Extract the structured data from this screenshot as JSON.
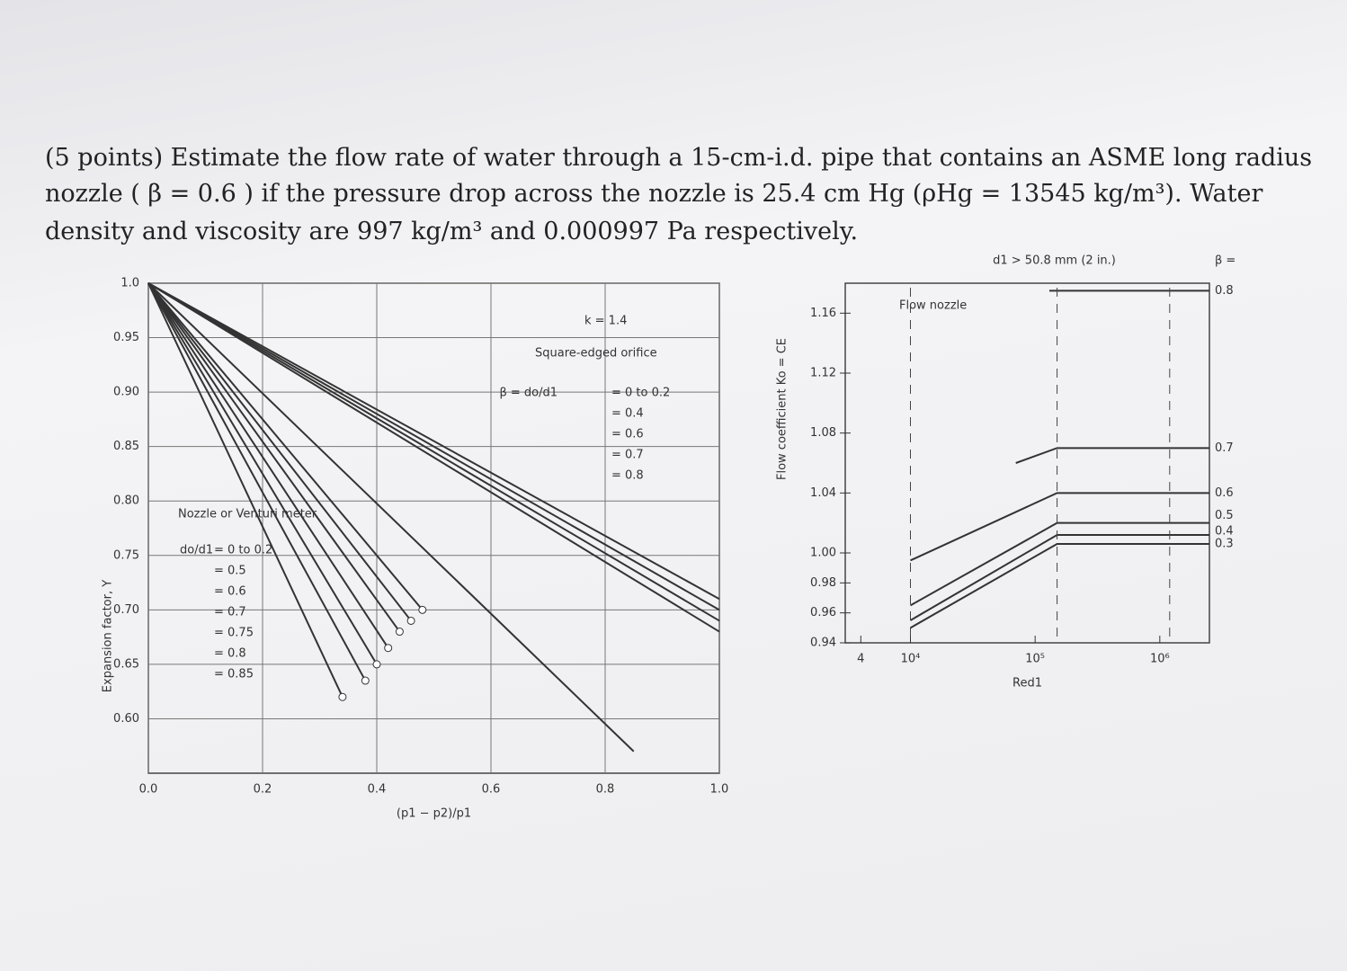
{
  "question": {
    "lines": [
      "(5 points) Estimate the flow rate of water through a 15-cm-i.d. pipe that contains an ASME long radius",
      "nozzle ( β = 0.6 ) if the pressure drop across the nozzle is 25.4 cm Hg (ρHg = 13545 kg/m³). Water",
      "density and viscosity are 997 kg/m³ and 0.000997 Pa respectively."
    ]
  },
  "chart_data": [
    {
      "type": "line",
      "x_label": "(p1 − p2)/p1",
      "y_label": "Expansion factor, Y",
      "color": "#333333",
      "grid": true,
      "k_label": "k = 1.4",
      "orifice_label": "Square-edged orifice",
      "orifice_ratio": "β = do/d1",
      "nozzle_label": "Nozzle or Venturi meter",
      "nozzle_ratio": "do/d1",
      "xlim": [
        0,
        1
      ],
      "ylim": [
        0.55,
        1
      ],
      "xticks": [
        {
          "value": 0,
          "label": "0.0"
        },
        0.2,
        0.4,
        0.6,
        0.8,
        {
          "value": 1,
          "label": "1.0"
        }
      ],
      "yticks": [
        {
          "value": 0.6,
          "label": "0.60"
        },
        0.65,
        {
          "value": 0.7,
          "label": "0.70"
        },
        0.75,
        {
          "value": 0.8,
          "label": "0.80"
        },
        0.85,
        {
          "value": 0.9,
          "label": "0.90"
        },
        0.95,
        {
          "value": 1,
          "label": "1.0"
        }
      ],
      "orifice_series": [
        {
          "name": "= 0 to 0.2",
          "x": [
            0,
            1
          ],
          "values": [
            1,
            0.71
          ]
        },
        {
          "name": "= 0.4",
          "x": [
            0,
            1
          ],
          "values": [
            1,
            0.7
          ]
        },
        {
          "name": "= 0.6",
          "x": [
            0,
            1
          ],
          "values": [
            1,
            0.69
          ]
        },
        {
          "name": "= 0.7",
          "x": [
            0,
            1
          ],
          "values": [
            1,
            0.68
          ]
        },
        {
          "name": "= 0.8",
          "x": [
            0,
            0.85
          ],
          "values": [
            1,
            0.57
          ]
        }
      ],
      "nozzle_series": [
        {
          "name": "= 0 to 0.2",
          "x": [
            0,
            0.48
          ],
          "values": [
            1,
            0.7
          ]
        },
        {
          "name": "= 0.5",
          "x": [
            0,
            0.46
          ],
          "values": [
            1,
            0.69
          ]
        },
        {
          "name": "= 0.6",
          "x": [
            0,
            0.44
          ],
          "values": [
            1,
            0.68
          ]
        },
        {
          "name": "= 0.7",
          "x": [
            0,
            0.42
          ],
          "values": [
            1,
            0.665
          ]
        },
        {
          "name": "= 0.75",
          "x": [
            0,
            0.4
          ],
          "values": [
            1,
            0.65
          ]
        },
        {
          "name": "= 0.8",
          "x": [
            0,
            0.38
          ],
          "values": [
            1,
            0.635
          ]
        },
        {
          "name": "= 0.85",
          "x": [
            0,
            0.34
          ],
          "values": [
            1,
            0.62
          ]
        }
      ]
    },
    {
      "type": "line",
      "x_label": "Red1",
      "y_label": "Flow coefficient Ko = CE",
      "color": "#333333",
      "grid": false,
      "log_x": true,
      "note": "d1 > 50.8 mm (2 in.)",
      "device_label": "Flow nozzle",
      "beta_label": "β =",
      "xlim": [
        3000,
        2500000
      ],
      "ylim": [
        0.94,
        1.18
      ],
      "xticks": [
        {
          "value": 4000,
          "label": "4"
        },
        {
          "value": 10000,
          "label": "10⁴"
        },
        {
          "value": 100000,
          "label": "10⁵"
        },
        {
          "value": 1000000,
          "label": "10⁶"
        }
      ],
      "yticks": [
        0.94,
        0.96,
        0.98,
        {
          "value": 1,
          "label": "1.00"
        },
        1.04,
        1.08,
        1.12,
        1.16
      ],
      "series": [
        {
          "name": "0.8",
          "x": [
            130000,
            2500000
          ],
          "values": [
            1.175,
            1.175
          ]
        },
        {
          "name": "0.7",
          "x": [
            70000,
            150000,
            2500000
          ],
          "values": [
            1.06,
            1.07,
            1.07
          ]
        },
        {
          "name": "0.6",
          "x": [
            10000,
            150000,
            2500000
          ],
          "values": [
            0.995,
            1.04,
            1.04
          ]
        },
        {
          "name": "0.5",
          "x": [
            10000,
            150000,
            2500000
          ],
          "values": [
            0.965,
            1.02,
            1.02
          ]
        },
        {
          "name": "0.4",
          "x": [
            10000,
            150000,
            2500000
          ],
          "values": [
            0.955,
            1.012,
            1.012
          ]
        },
        {
          "name": "0.3",
          "x": [
            10000,
            150000,
            2500000
          ],
          "values": [
            0.95,
            1.006,
            1.006
          ]
        }
      ]
    }
  ]
}
